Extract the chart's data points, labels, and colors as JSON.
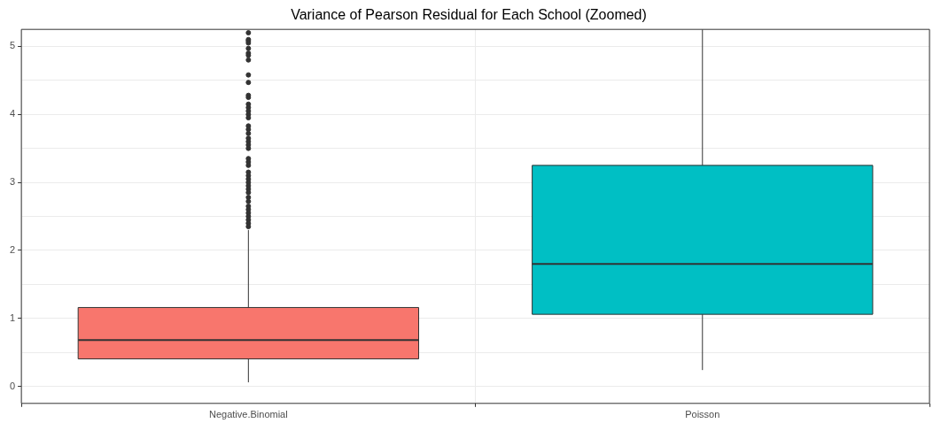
{
  "chart_data": {
    "type": "box",
    "title": "Variance of Pearson Residual for Each School (Zoomed)",
    "categories": [
      "Negative.Binomial",
      "Poisson"
    ],
    "colors": [
      "#f8766d",
      "#00bfc4"
    ],
    "boxes": [
      {
        "low": 0.06,
        "q1": 0.405,
        "median": 0.68,
        "q3": 1.16,
        "high": 2.3,
        "outliers": [
          5.2,
          5.1,
          5.08,
          5.05,
          4.97,
          4.9,
          4.87,
          4.8,
          4.58,
          4.47,
          4.28,
          4.25,
          4.15,
          4.1,
          4.05,
          4.0,
          3.95,
          3.83,
          3.78,
          3.72,
          3.65,
          3.6,
          3.55,
          3.5,
          3.35,
          3.3,
          3.25,
          3.15,
          3.1,
          3.05,
          3.0,
          2.95,
          2.9,
          2.85,
          2.78,
          2.72,
          2.65,
          2.6,
          2.55,
          2.5,
          2.45,
          2.4,
          2.35
        ]
      },
      {
        "low": 0.24,
        "q1": 1.06,
        "median": 1.8,
        "q3": 3.25,
        "high": 5.25
      }
    ],
    "ylim": [
      -0.25,
      5.25
    ],
    "yticks": [
      0,
      {
        "value": 0.5,
        "label": null
      },
      1,
      {
        "value": 1.5,
        "label": null
      },
      2,
      {
        "value": 2.5,
        "label": null
      },
      3,
      {
        "value": 3.5,
        "label": null
      },
      4,
      {
        "value": 4.5,
        "label": null
      },
      5
    ],
    "grid": true
  }
}
